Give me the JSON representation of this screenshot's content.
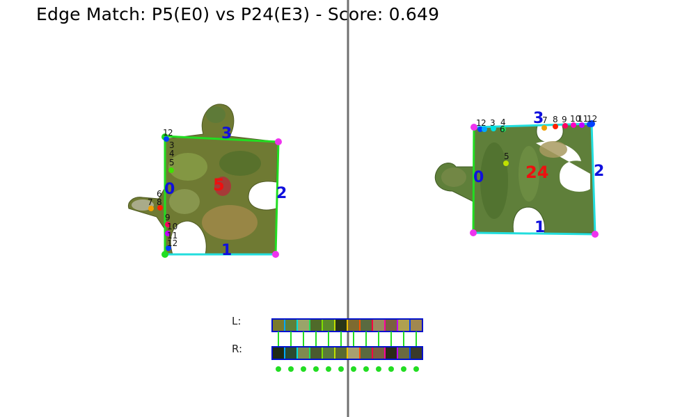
{
  "title": "Edge Match: P5(E0) vs P24(E3) - Score: 0.649",
  "left_piece": {
    "id_label": "5",
    "edge_labels": [
      "0",
      "1",
      "2",
      "3"
    ],
    "point_labels": [
      "1",
      "2",
      "3",
      "4",
      "5",
      "6",
      "7",
      "8",
      "9",
      "10",
      "11",
      "12"
    ]
  },
  "right_piece": {
    "id_label": "24",
    "edge_labels": [
      "0",
      "1",
      "2",
      "3"
    ],
    "point_labels": [
      "1",
      "2",
      "3",
      "4",
      "5",
      "6",
      "7",
      "8",
      "9",
      "10",
      "11",
      "12"
    ]
  },
  "strips": {
    "left_label": "L:",
    "right_label": "R:",
    "left_colors": [
      "#7b7a2e",
      "#5f7f3a",
      "#9aa46a",
      "#4f6a2a",
      "#5b8a2a",
      "#2a3518",
      "#7d6a30",
      "#5a6a40",
      "#9a8a60",
      "#7a6040",
      "#b0a050",
      "#a08850"
    ],
    "right_colors": [
      "#1f2a14",
      "#2a4a30",
      "#7f8a50",
      "#4a5a30",
      "#5a7a3a",
      "#5a6a30",
      "#a8a070",
      "#5a6a40",
      "#7a6040",
      "#2a2a18",
      "#6a6a40",
      "#3a3a2a"
    ],
    "border_colors": [
      "#00c000",
      "#00aaff",
      "#00e0e0",
      "#20e060",
      "#80e000",
      "#c0e000",
      "#f0c000",
      "#ff5000",
      "#ff0040",
      "#ff00a0",
      "#c000ff",
      "#0040ff"
    ]
  },
  "colors": {
    "edge_green": "#22dd22",
    "edge_cyan": "#22dddd",
    "edge_blue_label": "#1010dd",
    "piece_label_red": "#ee1010",
    "corner_magenta": "#ee33ee",
    "divider": "#707070"
  }
}
